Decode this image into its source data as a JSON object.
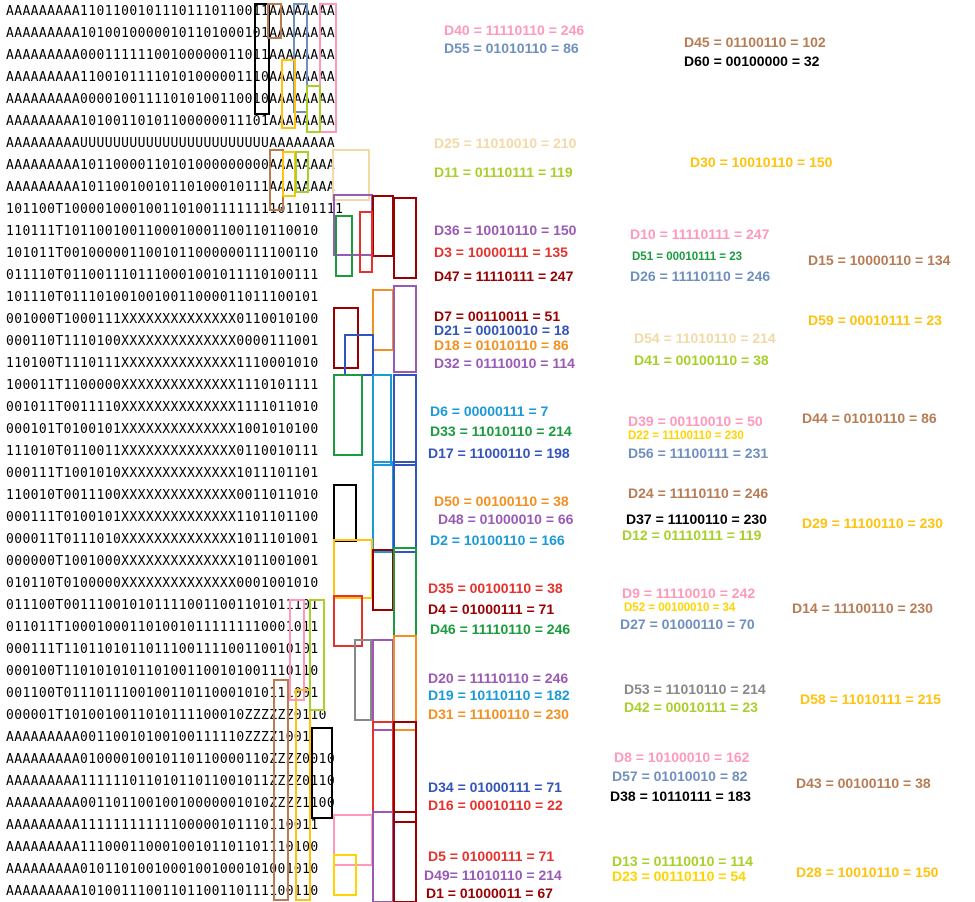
{
  "grid": {
    "rows": [
      "AAAAAAAAA11011001011101110110011AAAAAAAA",
      "AAAAAAAAA10100100000101101000101AAAAAAAA",
      "AAAAAAAAA00011111100100000011011AAAAAAAA",
      "AAAAAAAAA11001011110101000001110AAAAAAAA",
      "AAAAAAAAA00001001111010100110010AAAAAAAA",
      "AAAAAAAAA10100110101100000011101AAAAAAAA",
      "AAAAAAAAAUUUUUUUUUUUUUUUUUUUUUUUAAAAAAAA",
      "AAAAAAAAA10110000110101000000000AAAAAAAA",
      "AAAAAAAAA10110010010110100010111AAAAAAAA",
      "101100T1000010001001101001111111101101111",
      "110111T1011001001100010001100110110010",
      "101011T0010000011001011000000111100110",
      "011110T0110011101110001001011110100111",
      "101110T0111010010010011000011011100101",
      "001000T1000111XXXXXXXXXXXXXX0110010100",
      "000110T1110100XXXXXXXXXXXXXX0000111001",
      "110100T1110111XXXXXXXXXXXXXX1110001010",
      "100011T1100000XXXXXXXXXXXXXX1110101111",
      "001011T0011110XXXXXXXXXXXXXX1111011010",
      "000101T0100101XXXXXXXXXXXXXX1001010100",
      "111010T0110011XXXXXXXXXXXXXX0110010111",
      "000111T1001010XXXXXXXXXXXXXX1011101101",
      "110010T0011100XXXXXXXXXXXXXX0011011010",
      "000111T0100101XXXXXXXXXXXXXX1101101100",
      "000011T0111010XXXXXXXXXXXXXX1011101001",
      "000000T1001000XXXXXXXXXXXXXX1011001001",
      "010110T0100000XXXXXXXXXXXXXX0001001010",
      "011100T0011100101011110011001101011101",
      "011011T1000100011010010111111110001011",
      "000111T1101101011011100111100110010101",
      "000100T1101010101101001100101001110110",
      "001100T0111011100100110110001010111001",
      "000001T1010010011010111100010ZZZZZZ0110",
      "AAAAAAAAA00110010100100111110ZZZZ1001",
      "AAAAAAAAA01000010010110110000110ZZZZ0010",
      "AAAAAAAAA11111101101011011001011ZZZZ0110",
      "AAAAAAAAA00110110010010000001010ZZZZ1100",
      "AAAAAAAAA11111111111100000101110110011",
      "AAAAAAAAA11100011000100101101101110100",
      "AAAAAAAAA01011010010001001000101001010",
      "AAAAAAAAA10100111001101100110111100110"
    ]
  },
  "labels": [
    {
      "text": "D40 = 11110110 = 246",
      "color": "#ff99bb"
    },
    {
      "text": "D55 = 01010110 = 86",
      "color": "#6f8fbf"
    },
    {
      "text": "D45 = 01100110 = 102",
      "color": "#b87c55"
    },
    {
      "text": "D60 = 00100000 = 32",
      "color": "#000000"
    },
    {
      "text": "D25 = 11010010 = 210",
      "color": "#f2d9a6"
    },
    {
      "text": "D11 = 01110111 = 119",
      "color": "#a8cf2a"
    },
    {
      "text": "D30 = 10010110 = 150",
      "color": "#ffc20e"
    },
    {
      "text": "D36 = 10010110 = 150",
      "color": "#9b59b6"
    },
    {
      "text": "D3 = 10000111 = 135",
      "color": "#e5322d"
    },
    {
      "text": "D47 = 11110111 = 247",
      "color": "#990000"
    },
    {
      "text": "D10 = 11110111 = 247",
      "color": "#ff99bb"
    },
    {
      "text": "D51 = 00010111 = 23",
      "color": "#1a9c3e"
    },
    {
      "text": "D26 = 11110110 = 246",
      "color": "#6f8fbf"
    },
    {
      "text": "D15 = 10000110 = 134",
      "color": "#b87c55"
    },
    {
      "text": "D7  = 00110011 = 51",
      "color": "#990000"
    },
    {
      "text": "D21 = 00010010 = 18",
      "color": "#3355bb"
    },
    {
      "text": "D18 = 01010110 = 86",
      "color": "#f39021"
    },
    {
      "text": "D32 = 01110010 = 114",
      "color": "#9b59b6"
    },
    {
      "text": "D54 = 11010110 = 214",
      "color": "#f2d9a6"
    },
    {
      "text": "D41 = 00100110 = 38",
      "color": "#a8cf2a"
    },
    {
      "text": "D59 = 00010111 = 23",
      "color": "#ffc20e"
    },
    {
      "text": "D6 = 00000111 = 7",
      "color": "#1a9ad6"
    },
    {
      "text": "D33 = 11010110 = 214",
      "color": "#1a9c3e"
    },
    {
      "text": "D17 = 11000110 = 198",
      "color": "#3355bb"
    },
    {
      "text": "D39 = 00110010 = 50",
      "color": "#ff99bb"
    },
    {
      "text": "D22 = 11100110 = 230",
      "color": "#ffd400"
    },
    {
      "text": "D56 = 11100111 = 231",
      "color": "#6f8fbf"
    },
    {
      "text": "D44 = 01010110 = 86",
      "color": "#b87c55"
    },
    {
      "text": "D50 = 00100110 = 38",
      "color": "#f39021"
    },
    {
      "text": "D48 = 01000010 = 66",
      "color": "#9b59b6"
    },
    {
      "text": "D2 = 10100110 = 166",
      "color": "#1a9ad6"
    },
    {
      "text": "D24 = 11110110 = 246",
      "color": "#b87c55"
    },
    {
      "text": "D37 = 11100110 = 230",
      "color": "#000000"
    },
    {
      "text": "D12 = 01110111 = 119",
      "color": "#a8cf2a"
    },
    {
      "text": "D29 = 11100110 = 230",
      "color": "#ffc20e"
    },
    {
      "text": "D35 = 00100110 = 38",
      "color": "#e5322d"
    },
    {
      "text": "D4 = 01000111 = 71",
      "color": "#990000"
    },
    {
      "text": "D46 = 11110110 = 246",
      "color": "#1a9c3e"
    },
    {
      "text": "D9 = 11110010 = 242",
      "color": "#ff99bb"
    },
    {
      "text": "D52 = 00100010 = 34",
      "color": "#ffd400"
    },
    {
      "text": "D27 = 01000110 = 70",
      "color": "#6f8fbf"
    },
    {
      "text": "D14 = 11100110 = 230",
      "color": "#b87c55"
    },
    {
      "text": "D20 = 11110110 = 246",
      "color": "#9b59b6"
    },
    {
      "text": "D19 = 10110110 = 182",
      "color": "#1a9ad6"
    },
    {
      "text": "D31 = 11100110 = 230",
      "color": "#f39021"
    },
    {
      "text": "D53 = 11010110 = 214",
      "color": "#888888"
    },
    {
      "text": "D42 = 00010111 = 23",
      "color": "#a8cf2a"
    },
    {
      "text": "D58 = 11010111 = 215",
      "color": "#ffc20e"
    },
    {
      "text": "D8 = 10100010 = 162",
      "color": "#ff99bb"
    },
    {
      "text": "D57 = 01010010 = 82",
      "color": "#6f8fbf"
    },
    {
      "text": "D38 = 10110111 = 183",
      "color": "#000000"
    },
    {
      "text": "D43 = 00100110 = 38",
      "color": "#b87c55"
    },
    {
      "text": "D34 = 01000111 = 71",
      "color": "#3355bb"
    },
    {
      "text": "D16 = 00010110 = 22",
      "color": "#e5322d"
    },
    {
      "text": "D5 = 01000111 = 71",
      "color": "#e5322d"
    },
    {
      "text": "D49= 11010110 = 214",
      "color": "#9b59b6"
    },
    {
      "text": "D1 = 01000011 = 67",
      "color": "#990000"
    },
    {
      "text": "D13 = 01110010 = 114",
      "color": "#a8cf2a"
    },
    {
      "text": "D23 = 00110110 = 54",
      "color": "#ffd400"
    },
    {
      "text": "D28 = 10010110 = 150",
      "color": "#ffc20e"
    }
  ]
}
